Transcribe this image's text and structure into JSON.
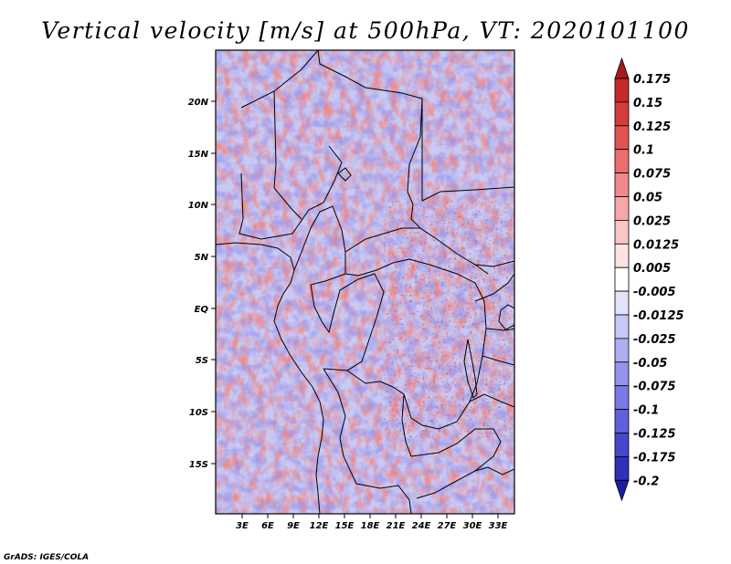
{
  "title": "Vertical velocity [m/s] at 500hPa, VT: 2020101100",
  "credit": "GrADS: IGES/COLA",
  "map": {
    "region": "Central Africa",
    "variable": "Vertical velocity",
    "units": "m/s",
    "level": "500hPa",
    "valid_time": "2020101100",
    "lat_labels": [
      "20N",
      "15N",
      "10N",
      "5N",
      "EQ",
      "5S",
      "10S",
      "15S"
    ],
    "lon_labels": [
      "3E",
      "6E",
      "9E",
      "12E",
      "15E",
      "18E",
      "21E",
      "24E",
      "27E",
      "30E",
      "33E"
    ]
  },
  "colorbar": {
    "labels": [
      "0.175",
      "0.15",
      "0.125",
      "0.1",
      "0.075",
      "0.05",
      "0.025",
      "0.0125",
      "0.005",
      "-0.005",
      "-0.0125",
      "-0.025",
      "-0.05",
      "-0.075",
      "-0.1",
      "-0.125",
      "-0.175",
      "-0.2"
    ],
    "colors": [
      "#a51c1c",
      "#c52a2a",
      "#d63c3c",
      "#e25353",
      "#eb6e6e",
      "#f08a8a",
      "#f5a8a8",
      "#f9c6c6",
      "#fce3e3",
      "#ffffff",
      "#e2e2fb",
      "#c8c8f6",
      "#aeaef1",
      "#9494ec",
      "#7a7ae4",
      "#6060da",
      "#4646cc",
      "#3030b8",
      "#1c1ca0"
    ]
  }
}
